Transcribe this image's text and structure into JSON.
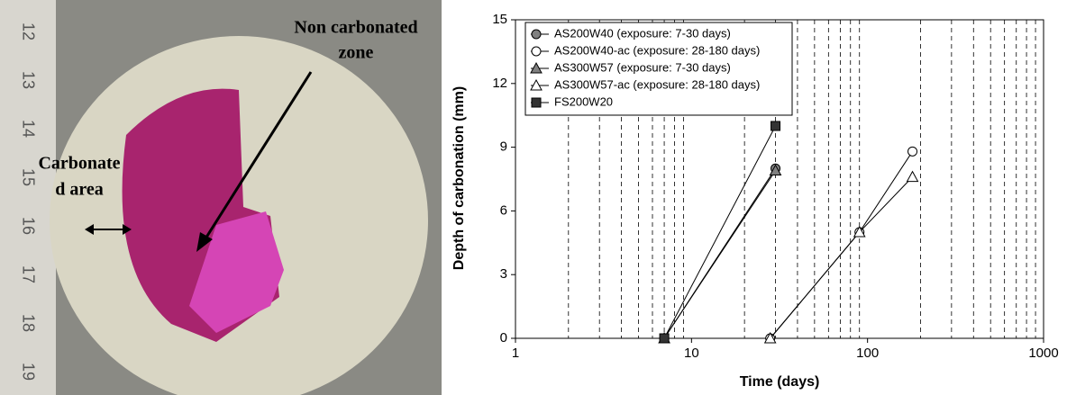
{
  "photo": {
    "annotations": [
      "Non carbonated",
      "zone",
      "Carbonate",
      "d area"
    ],
    "ruler": [
      "12",
      "13",
      "14",
      "15",
      "16",
      "17",
      "18",
      "19"
    ]
  },
  "chart_data": {
    "type": "line",
    "x_label": "Time (days)",
    "y_label": "Depth of carbonation (mm)",
    "log_x": true,
    "xlim": [
      1,
      1000
    ],
    "xticks": [
      1,
      10,
      100,
      1000
    ],
    "ylim": [
      0,
      15
    ],
    "yticks": [
      0,
      3,
      6,
      9,
      12,
      15
    ],
    "x_grid": [
      2,
      3,
      4,
      5,
      6,
      7,
      8,
      9,
      20,
      30,
      40,
      50,
      60,
      70,
      80,
      90,
      200,
      300,
      400,
      500,
      600,
      700,
      800,
      900
    ],
    "legend": "upper left",
    "series": [
      {
        "name": "AS200W40 (exposure: 7-30 days)",
        "color": "#808080",
        "marker": "circle",
        "x": [
          7,
          30
        ],
        "values": [
          0,
          8
        ]
      },
      {
        "name": "AS200W40-ac (exposure: 28-180 days)",
        "color": "#ffffff",
        "marker": "circle",
        "x": [
          28,
          90,
          180
        ],
        "values": [
          0,
          5,
          8.8
        ]
      },
      {
        "name": "AS300W57 (exposure: 7-30 days)",
        "color": "#808080",
        "marker": "triangle",
        "x": [
          7,
          30
        ],
        "values": [
          0,
          7.9
        ]
      },
      {
        "name": "AS300W57-ac (exposure: 28-180 days)",
        "color": "#ffffff",
        "marker": "triangle",
        "x": [
          28,
          90,
          180
        ],
        "values": [
          0,
          5,
          7.6
        ]
      },
      {
        "name": "FS200W20",
        "color": "#333333",
        "marker": "square",
        "x": [
          7,
          30
        ],
        "values": [
          0,
          10
        ]
      }
    ]
  }
}
